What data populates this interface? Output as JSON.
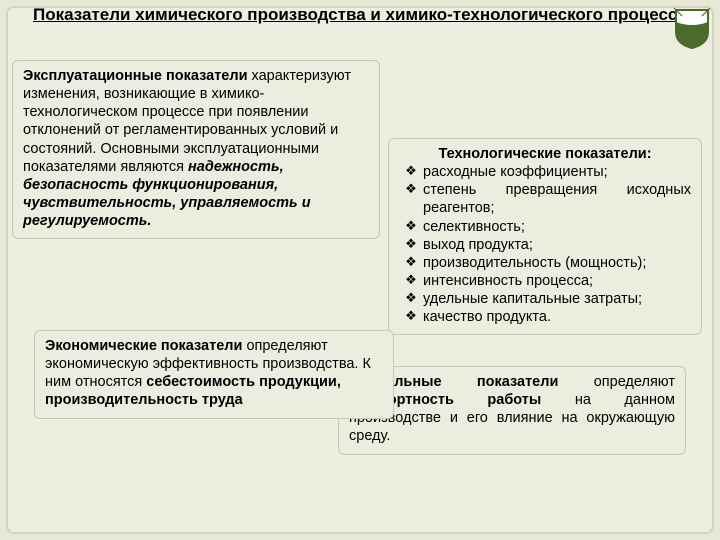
{
  "title": "Показатели химического производства и химико-технологического процесса",
  "logo": {
    "shield_fill": "#ffffff",
    "shield_stroke": "#4a6b2a",
    "banner_fill": "#4a6b2a"
  },
  "boxes": {
    "expl": {
      "lead": "Эксплуатационные показатели",
      "body": " характеризуют изменения, возникающие в химико-технологическом процессе при появлении отклонений от регламентированных условий и состояний. Основными эксплуатационными показателями являются ",
      "emph": "надежность, безопасность функционирования, чувствительность, управляемость и регулируемость."
    },
    "tech": {
      "heading": "Технологические показатели:",
      "bullets": [
        "расходные коэффициенты;",
        "степень превращения исходных реагентов;",
        "селективность;",
        " выход продукта;",
        "производительность (мощность);",
        " интенсивность процесса;",
        "удельные капитальные затраты;",
        " качество продукта."
      ],
      "bullet_symbol": "❖"
    },
    "econ": {
      "lead": "Экономические показатели",
      "body": " определяют экономическую эффективность производства. К ним относятся ",
      "emph": "себестоимость продукции, производительность труда"
    },
    "soc": {
      "lead": "Социальные показатели",
      "body1": " определяют ",
      "emph": "комфортность работы",
      "body2": " на данном производстве и его влияние на окружающую среду."
    }
  },
  "colors": {
    "page_bg": "#e8e8d8",
    "frame_bg": "#edeee0",
    "box_bg": "#ecedde",
    "box_border": "#c8c8b4"
  },
  "fontsizes": {
    "title": 17,
    "body": 14.5
  }
}
